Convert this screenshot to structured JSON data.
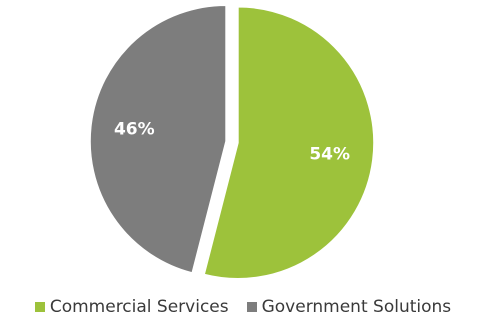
{
  "chart_data": {
    "type": "pie",
    "title": "",
    "start_angle": "12 o'clock",
    "direction": "clockwise",
    "exploded": true,
    "legend_position": "bottom",
    "slices": [
      {
        "name": "Commercial Services",
        "value": 54,
        "label": "54%",
        "color": "#9dc23b"
      },
      {
        "name": "Government Solutions",
        "value": 46,
        "label": "46%",
        "color": "#7d7d7d"
      }
    ]
  }
}
